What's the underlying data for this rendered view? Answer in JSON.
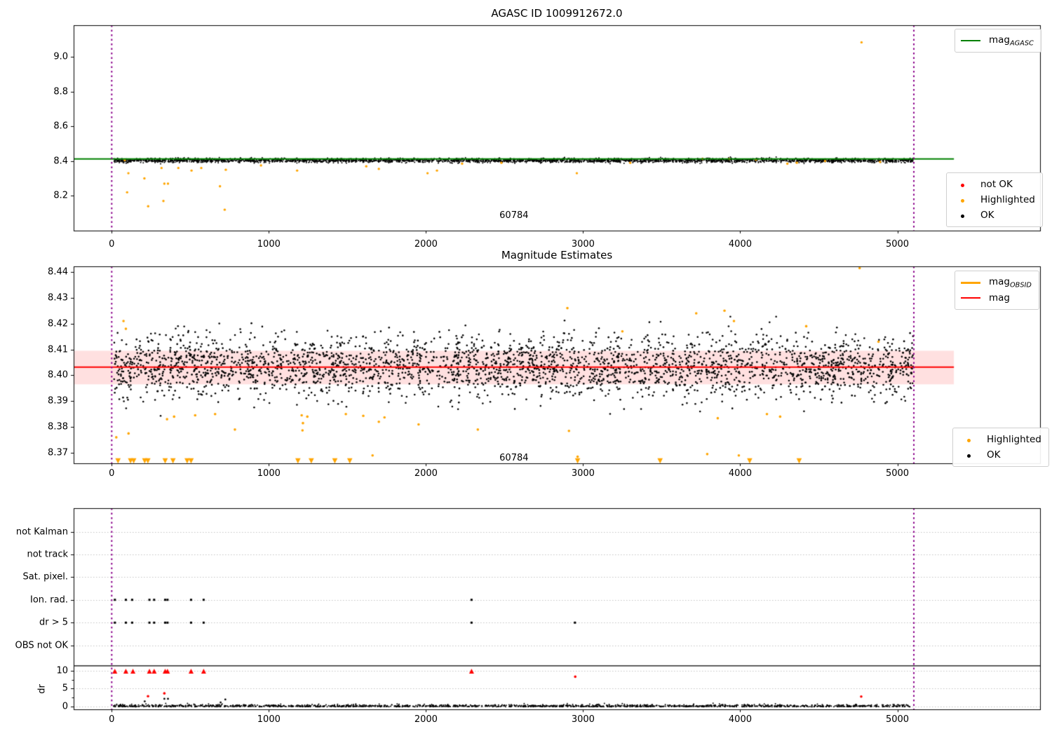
{
  "colors": {
    "green": "#008000",
    "orange": "#ffa500",
    "red": "#ff0000",
    "black": "#000000",
    "purple": "#8b008b",
    "band_pink": "rgba(255,0,0,0.12)",
    "grid": "#c2c2c2"
  },
  "chart_data": [
    {
      "id": "agasc_mag",
      "type": "scatter",
      "title": "AGASC ID 1009912672.0",
      "x_ticks": [
        0,
        1000,
        2000,
        3000,
        4000,
        5000
      ],
      "y_tick_labels": [
        "9.0",
        "8.8",
        "8.6",
        "8.4",
        "8.2"
      ],
      "y_tick_values": [
        9.0,
        8.8,
        8.6,
        8.4,
        8.2
      ],
      "xlim": [
        -242,
        5909
      ],
      "ylim": [
        8.0,
        9.18
      ],
      "vlines_x": [
        0,
        5105
      ],
      "agasc_line": {
        "value": 8.412,
        "x_start": -242,
        "x_end": 5360
      },
      "annotation": {
        "text": "60784",
        "x": 2560,
        "y": 8.09
      },
      "main_scatter": {
        "count": 3000,
        "x_min": 10,
        "x_max": 5100,
        "y_mean": 8.4035,
        "y_sigma": 0.006,
        "seed": 42
      },
      "highlighted_points": [
        [
          83,
          8.405
        ],
        [
          98,
          8.22
        ],
        [
          106,
          8.33
        ],
        [
          208,
          8.3
        ],
        [
          232,
          8.14
        ],
        [
          317,
          8.36
        ],
        [
          329,
          8.17
        ],
        [
          335,
          8.27
        ],
        [
          358,
          8.27
        ],
        [
          424,
          8.36
        ],
        [
          508,
          8.345
        ],
        [
          570,
          8.36
        ],
        [
          689,
          8.255
        ],
        [
          719,
          8.12
        ],
        [
          726,
          8.35
        ],
        [
          950,
          8.375
        ],
        [
          1180,
          8.345
        ],
        [
          1620,
          8.37
        ],
        [
          1700,
          8.355
        ],
        [
          2010,
          8.33
        ],
        [
          2070,
          8.345
        ],
        [
          2230,
          8.385
        ],
        [
          2480,
          8.39
        ],
        [
          2960,
          8.33
        ],
        [
          3300,
          8.39
        ],
        [
          3760,
          8.412
        ],
        [
          3930,
          8.412
        ],
        [
          4100,
          8.408
        ],
        [
          4300,
          8.385
        ],
        [
          4360,
          8.39
        ],
        [
          4540,
          8.4
        ],
        [
          4772,
          9.083
        ],
        [
          4890,
          8.395
        ]
      ],
      "legend_line": {
        "label": "mag",
        "sub": "AGASC",
        "color_key": "green"
      },
      "legend_markers": [
        {
          "label": "not OK",
          "color_key": "red"
        },
        {
          "label": "Highlighted",
          "color_key": "orange"
        },
        {
          "label": "OK",
          "color_key": "black"
        }
      ]
    },
    {
      "id": "magnitude_estimates",
      "type": "scatter",
      "title": "Magnitude Estimates",
      "x_ticks": [
        0,
        1000,
        2000,
        3000,
        4000,
        5000
      ],
      "y_tick_labels": [
        "8.44",
        "8.43",
        "8.42",
        "8.41",
        "8.40",
        "8.39",
        "8.38",
        "8.37"
      ],
      "y_tick_values": [
        8.44,
        8.43,
        8.42,
        8.41,
        8.4,
        8.39,
        8.38,
        8.37
      ],
      "xlim": [
        -242,
        5909
      ],
      "ylim": [
        8.366,
        8.4422
      ],
      "vlines_x": [
        0,
        5105
      ],
      "mag_line": {
        "value": 8.4032,
        "x_start": -242,
        "x_end": 5360
      },
      "mag_band": {
        "low": 8.3965,
        "high": 8.4095,
        "x_start": -242,
        "x_end": 5360
      },
      "annotation": {
        "text": "60784",
        "x": 2560,
        "y": 8.368
      },
      "main_scatter": {
        "count": 3000,
        "x_min": 10,
        "x_max": 5100,
        "y_mean": 8.4035,
        "y_sigma": 0.006,
        "seed": 42
      },
      "highlighted_points": [
        [
          29,
          8.376
        ],
        [
          75,
          8.421
        ],
        [
          90,
          8.418
        ],
        [
          107,
          8.3775
        ],
        [
          352,
          8.383
        ],
        [
          397,
          8.384
        ],
        [
          531,
          8.3845
        ],
        [
          658,
          8.385
        ],
        [
          784,
          8.379
        ],
        [
          1209,
          8.3845
        ],
        [
          1214,
          8.3787
        ],
        [
          1217,
          8.3815
        ],
        [
          1245,
          8.384
        ],
        [
          1490,
          8.385
        ],
        [
          1601,
          8.3843
        ],
        [
          1660,
          8.369
        ],
        [
          1700,
          8.382
        ],
        [
          1736,
          8.3837
        ],
        [
          1953,
          8.381
        ],
        [
          2330,
          8.379
        ],
        [
          2900,
          8.426
        ],
        [
          2910,
          8.3785
        ],
        [
          2965,
          8.3685
        ],
        [
          3250,
          8.417
        ],
        [
          3720,
          8.424
        ],
        [
          3790,
          8.3695
        ],
        [
          3857,
          8.3834
        ],
        [
          3900,
          8.425
        ],
        [
          3960,
          8.421
        ],
        [
          3991,
          8.369
        ],
        [
          4170,
          8.385
        ],
        [
          4254,
          8.384
        ],
        [
          4420,
          8.419
        ],
        [
          4760,
          8.4415
        ],
        [
          4880,
          8.413
        ]
      ],
      "clipped_low_x": [
        40,
        120,
        140,
        210,
        230,
        340,
        390,
        480,
        505,
        1185,
        1270,
        1420,
        1515,
        2965,
        3490,
        4060,
        4375
      ],
      "legend_lines": [
        {
          "label": "mag",
          "sub": "OBSID",
          "color_key": "orange"
        },
        {
          "label": "mag",
          "sub": "",
          "color_key": "red"
        }
      ],
      "legend_markers": [
        {
          "label": "Highlighted",
          "color_key": "orange"
        },
        {
          "label": "OK",
          "color_key": "black"
        }
      ]
    },
    {
      "id": "flags_dr",
      "type": "scatter",
      "title": "",
      "x_ticks": [
        0,
        1000,
        2000,
        3000,
        4000,
        5000
      ],
      "categories": [
        "not Kalman",
        "not track",
        "Sat. pixel.",
        "Ion. rad.",
        "dr > 5",
        "OBS not OK"
      ],
      "dr_tick_labels": [
        "10",
        "5",
        "0"
      ],
      "dr_tick_values": [
        10,
        5,
        0
      ],
      "ylabel": "dr",
      "xlim": [
        -242,
        5909
      ],
      "vlines_x": [
        0,
        5105
      ],
      "separator_dr_value": 11.3,
      "flag_points": {
        "ion_rad_x": [
          20,
          90,
          130,
          240,
          270,
          340,
          355,
          505,
          585,
          2290
        ],
        "dr_gt5_x": [
          20,
          90,
          130,
          240,
          270,
          340,
          355,
          505,
          585,
          2290,
          2948
        ]
      },
      "dr_clipped_at10_x": [
        20,
        90,
        135,
        240,
        270,
        340,
        355,
        505,
        585,
        2290
      ],
      "dr_red_points": [
        [
          231,
          2.9
        ],
        [
          335,
          3.7
        ],
        [
          2950,
          8.3
        ],
        [
          4770,
          2.8
        ]
      ],
      "dr_black_outliers": [
        [
          210,
          1.5
        ],
        [
          335,
          2.2
        ],
        [
          358,
          2.2
        ],
        [
          693,
          1.2
        ],
        [
          723,
          2.0
        ]
      ],
      "baseline_scatter": {
        "count": 1600,
        "x_min": 10,
        "x_max": 5100,
        "dr_scale": 0.28,
        "dr_clip": 1.4,
        "seed": 7
      }
    }
  ]
}
